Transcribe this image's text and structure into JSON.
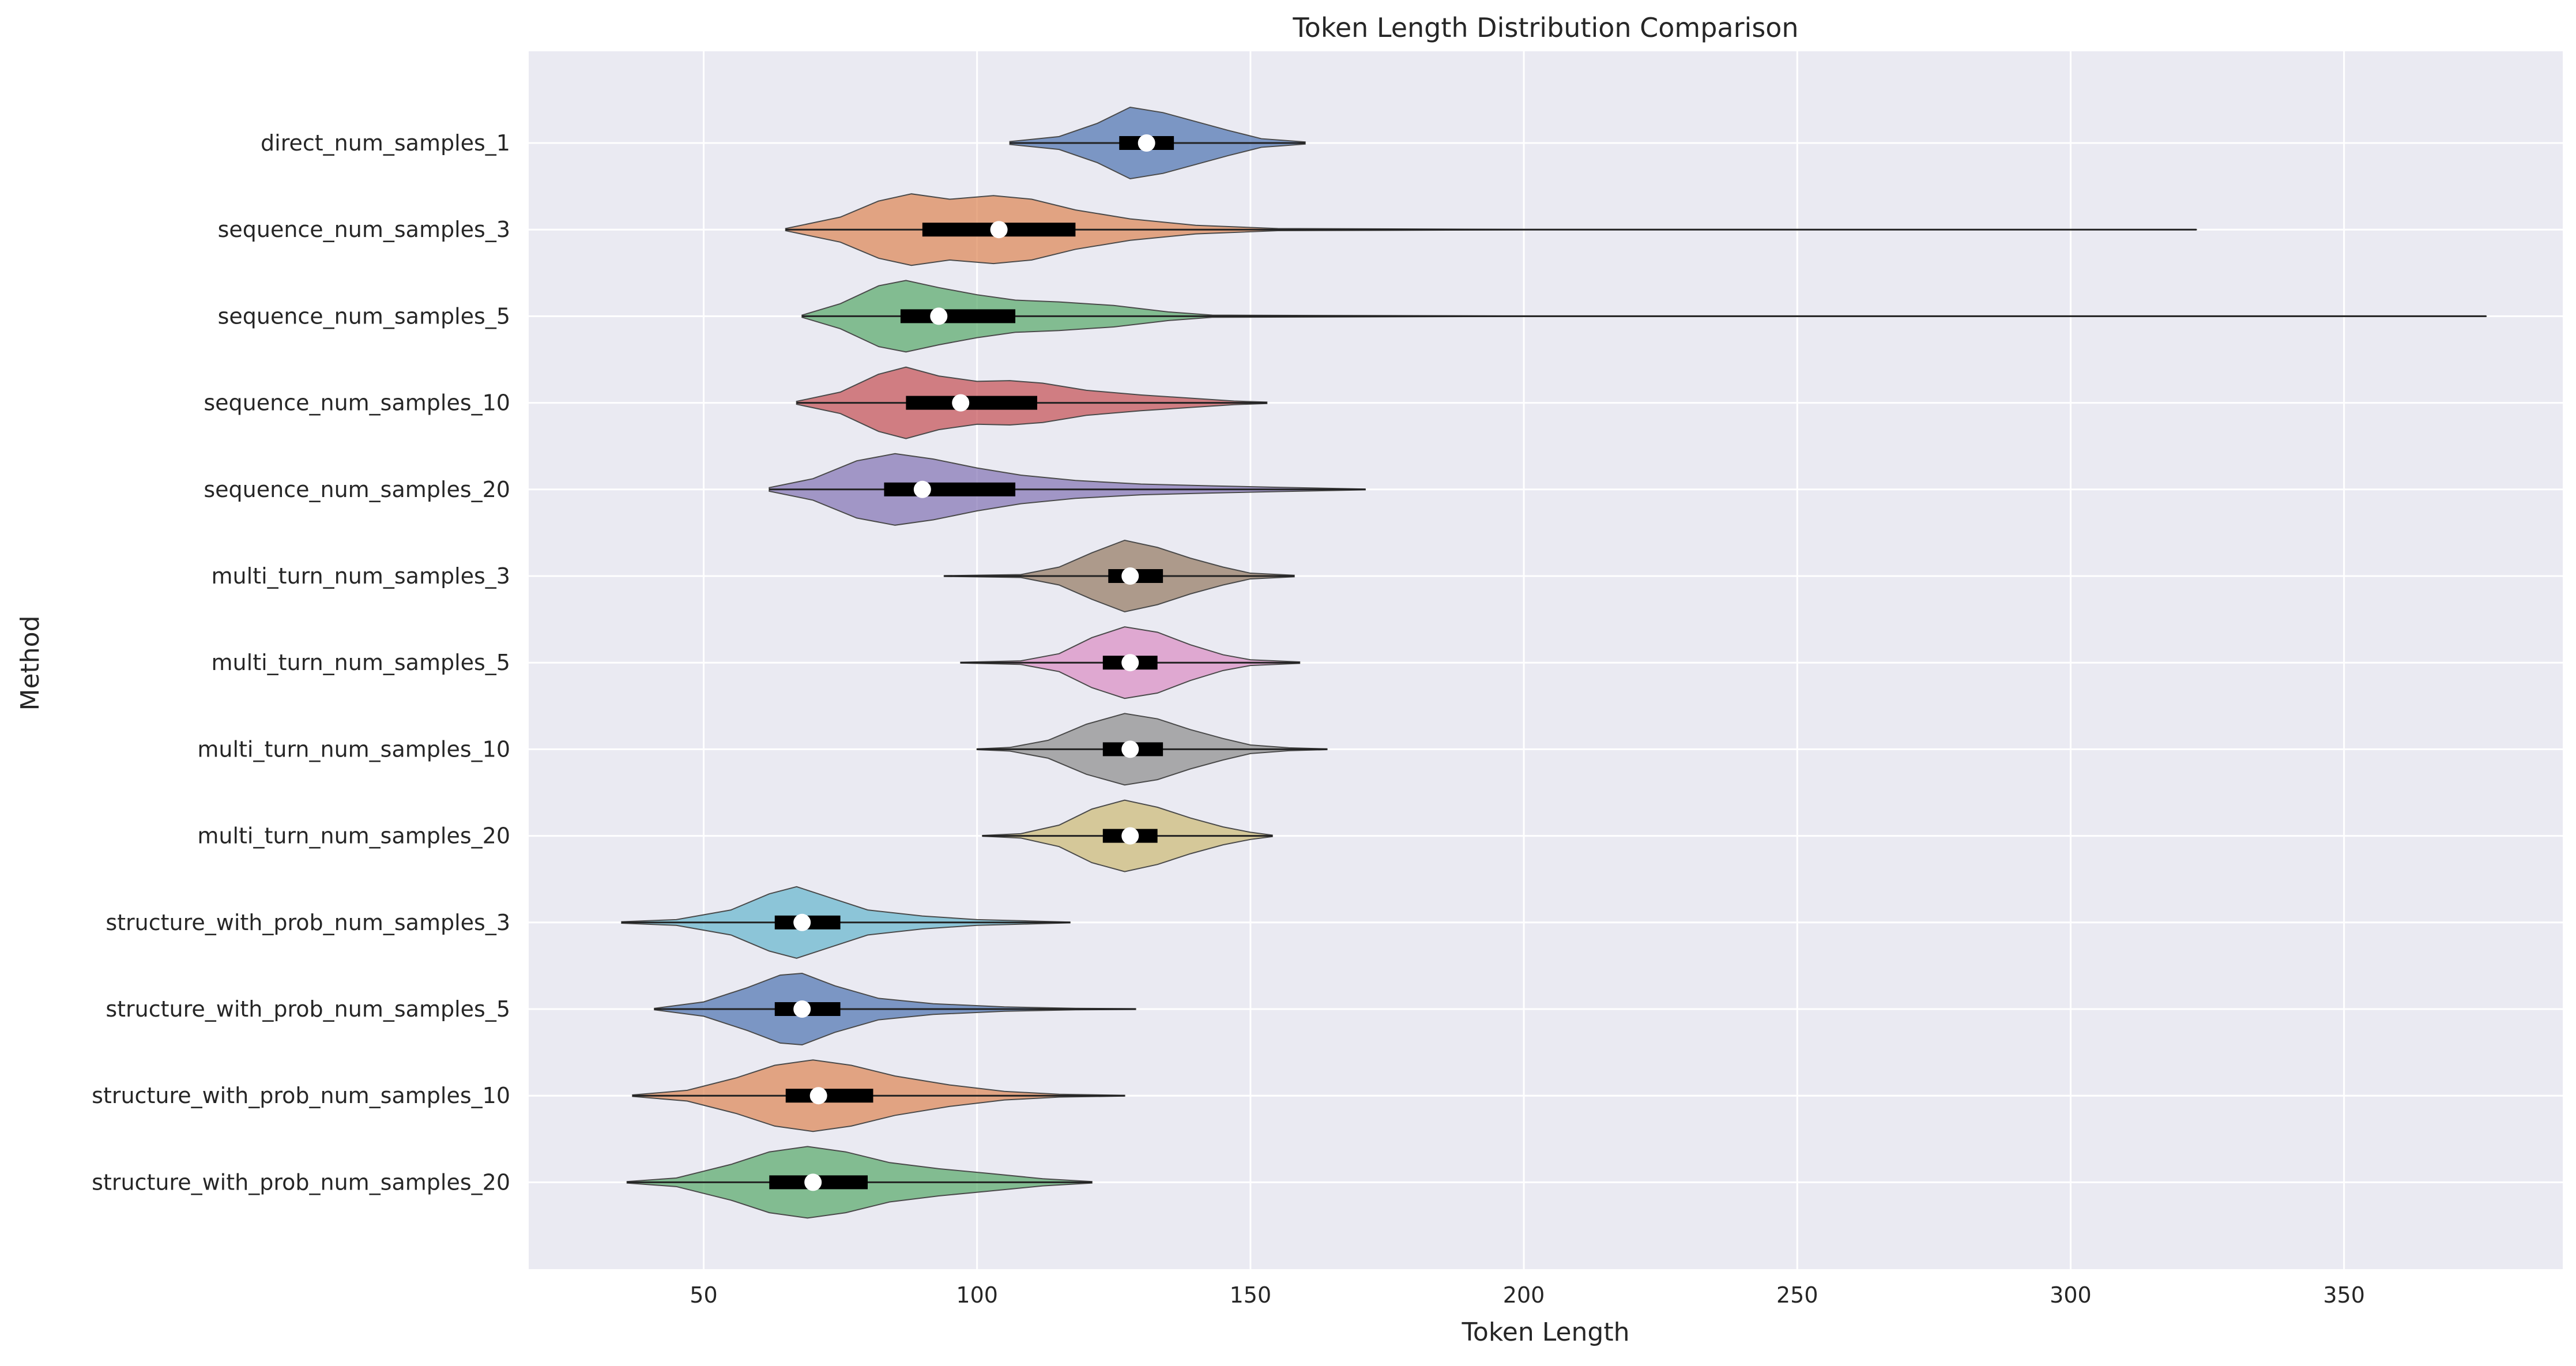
{
  "chart_data": {
    "type": "violin",
    "orientation": "horizontal",
    "title": "Token Length Distribution Comparison",
    "xlabel": "Token Length",
    "ylabel": "Method",
    "xlim": [
      18,
      390
    ],
    "xticks": [
      50,
      100,
      150,
      200,
      250,
      300,
      350
    ],
    "grid": true,
    "legend": "none",
    "series": [
      {
        "name": "direct_num_samples_1",
        "color": "#4c72b0",
        "min": 106,
        "q1": 126,
        "median": 131,
        "q3": 136,
        "max": 160,
        "density": [
          [
            106,
            0.04
          ],
          [
            115,
            0.18
          ],
          [
            122,
            0.55
          ],
          [
            128,
            1.0
          ],
          [
            134,
            0.85
          ],
          [
            140,
            0.6
          ],
          [
            146,
            0.35
          ],
          [
            152,
            0.12
          ],
          [
            160,
            0.03
          ]
        ]
      },
      {
        "name": "sequence_num_samples_3",
        "color": "#dd8452",
        "min": 65,
        "q1": 90,
        "median": 104,
        "q3": 118,
        "max": 323,
        "density": [
          [
            65,
            0.03
          ],
          [
            75,
            0.35
          ],
          [
            82,
            0.8
          ],
          [
            88,
            1.0
          ],
          [
            95,
            0.85
          ],
          [
            103,
            0.95
          ],
          [
            110,
            0.85
          ],
          [
            118,
            0.55
          ],
          [
            128,
            0.3
          ],
          [
            140,
            0.12
          ],
          [
            155,
            0.03
          ],
          [
            200,
            0.005
          ],
          [
            323,
            0.003
          ]
        ]
      },
      {
        "name": "sequence_num_samples_5",
        "color": "#55a868",
        "min": 68,
        "q1": 86,
        "median": 93,
        "q3": 107,
        "max": 376,
        "density": [
          [
            68,
            0.03
          ],
          [
            75,
            0.35
          ],
          [
            82,
            0.85
          ],
          [
            87,
            1.0
          ],
          [
            93,
            0.8
          ],
          [
            100,
            0.6
          ],
          [
            107,
            0.45
          ],
          [
            115,
            0.4
          ],
          [
            125,
            0.3
          ],
          [
            135,
            0.12
          ],
          [
            143,
            0.03
          ],
          [
            200,
            0.005
          ],
          [
            376,
            0.003
          ]
        ]
      },
      {
        "name": "sequence_num_samples_10",
        "color": "#c44e52",
        "min": 67,
        "q1": 87,
        "median": 97,
        "q3": 111,
        "max": 153,
        "density": [
          [
            67,
            0.04
          ],
          [
            75,
            0.3
          ],
          [
            82,
            0.8
          ],
          [
            87,
            1.0
          ],
          [
            93,
            0.75
          ],
          [
            100,
            0.6
          ],
          [
            106,
            0.62
          ],
          [
            112,
            0.55
          ],
          [
            120,
            0.35
          ],
          [
            130,
            0.22
          ],
          [
            140,
            0.12
          ],
          [
            147,
            0.05
          ],
          [
            153,
            0.02
          ]
        ]
      },
      {
        "name": "sequence_num_samples_20",
        "color": "#8172b3",
        "min": 62,
        "q1": 83,
        "median": 90,
        "q3": 107,
        "max": 171,
        "density": [
          [
            62,
            0.05
          ],
          [
            70,
            0.3
          ],
          [
            78,
            0.8
          ],
          [
            85,
            1.0
          ],
          [
            92,
            0.85
          ],
          [
            100,
            0.6
          ],
          [
            108,
            0.4
          ],
          [
            118,
            0.25
          ],
          [
            130,
            0.15
          ],
          [
            143,
            0.1
          ],
          [
            155,
            0.06
          ],
          [
            165,
            0.03
          ],
          [
            171,
            0.01
          ]
        ]
      },
      {
        "name": "multi_turn_num_samples_3",
        "color": "#937860",
        "min": 94,
        "q1": 124,
        "median": 128,
        "q3": 134,
        "max": 158,
        "density": [
          [
            94,
            0.01
          ],
          [
            108,
            0.04
          ],
          [
            115,
            0.25
          ],
          [
            121,
            0.65
          ],
          [
            127,
            1.0
          ],
          [
            133,
            0.8
          ],
          [
            139,
            0.5
          ],
          [
            145,
            0.25
          ],
          [
            150,
            0.08
          ],
          [
            158,
            0.02
          ]
        ]
      },
      {
        "name": "multi_turn_num_samples_5",
        "color": "#da8bc3",
        "min": 97,
        "q1": 123,
        "median": 128,
        "q3": 133,
        "max": 159,
        "density": [
          [
            97,
            0.01
          ],
          [
            108,
            0.05
          ],
          [
            115,
            0.25
          ],
          [
            121,
            0.7
          ],
          [
            127,
            1.0
          ],
          [
            133,
            0.85
          ],
          [
            139,
            0.5
          ],
          [
            145,
            0.22
          ],
          [
            150,
            0.08
          ],
          [
            159,
            0.02
          ]
        ]
      },
      {
        "name": "multi_turn_num_samples_10",
        "color": "#8c8c8c",
        "min": 100,
        "q1": 123,
        "median": 128,
        "q3": 134,
        "max": 164,
        "density": [
          [
            100,
            0.01
          ],
          [
            106,
            0.05
          ],
          [
            113,
            0.25
          ],
          [
            120,
            0.7
          ],
          [
            127,
            1.0
          ],
          [
            133,
            0.85
          ],
          [
            139,
            0.55
          ],
          [
            145,
            0.3
          ],
          [
            150,
            0.12
          ],
          [
            157,
            0.04
          ],
          [
            164,
            0.01
          ]
        ]
      },
      {
        "name": "multi_turn_num_samples_20",
        "color": "#ccb974",
        "min": 101,
        "q1": 123,
        "median": 128,
        "q3": 133,
        "max": 154,
        "density": [
          [
            101,
            0.01
          ],
          [
            108,
            0.06
          ],
          [
            115,
            0.3
          ],
          [
            121,
            0.75
          ],
          [
            127,
            1.0
          ],
          [
            133,
            0.8
          ],
          [
            139,
            0.5
          ],
          [
            145,
            0.25
          ],
          [
            150,
            0.1
          ],
          [
            154,
            0.02
          ]
        ]
      },
      {
        "name": "structure_with_prob_num_samples_3",
        "color": "#64b5cd",
        "min": 35,
        "q1": 63,
        "median": 68,
        "q3": 75,
        "max": 117,
        "density": [
          [
            35,
            0.02
          ],
          [
            45,
            0.08
          ],
          [
            55,
            0.35
          ],
          [
            62,
            0.8
          ],
          [
            67,
            1.0
          ],
          [
            73,
            0.7
          ],
          [
            80,
            0.35
          ],
          [
            90,
            0.18
          ],
          [
            100,
            0.08
          ],
          [
            110,
            0.04
          ],
          [
            117,
            0.01
          ]
        ]
      },
      {
        "name": "structure_with_prob_num_samples_5",
        "color": "#4c72b0",
        "min": 41,
        "q1": 63,
        "median": 68,
        "q3": 75,
        "max": 129,
        "density": [
          [
            41,
            0.02
          ],
          [
            50,
            0.2
          ],
          [
            58,
            0.6
          ],
          [
            64,
            0.95
          ],
          [
            68,
            1.0
          ],
          [
            74,
            0.65
          ],
          [
            82,
            0.3
          ],
          [
            92,
            0.15
          ],
          [
            105,
            0.06
          ],
          [
            118,
            0.02
          ],
          [
            129,
            0.01
          ]
        ]
      },
      {
        "name": "structure_with_prob_num_samples_10",
        "color": "#dd8452",
        "min": 37,
        "q1": 65,
        "median": 71,
        "q3": 81,
        "max": 127,
        "density": [
          [
            37,
            0.02
          ],
          [
            47,
            0.15
          ],
          [
            56,
            0.5
          ],
          [
            63,
            0.85
          ],
          [
            70,
            1.0
          ],
          [
            77,
            0.85
          ],
          [
            85,
            0.55
          ],
          [
            95,
            0.3
          ],
          [
            105,
            0.12
          ],
          [
            115,
            0.04
          ],
          [
            127,
            0.01
          ]
        ]
      },
      {
        "name": "structure_with_prob_num_samples_20",
        "color": "#55a868",
        "min": 36,
        "q1": 62,
        "median": 70,
        "q3": 80,
        "max": 121,
        "density": [
          [
            36,
            0.02
          ],
          [
            45,
            0.12
          ],
          [
            55,
            0.5
          ],
          [
            62,
            0.85
          ],
          [
            69,
            1.0
          ],
          [
            76,
            0.85
          ],
          [
            84,
            0.55
          ],
          [
            93,
            0.38
          ],
          [
            102,
            0.25
          ],
          [
            112,
            0.1
          ],
          [
            121,
            0.02
          ]
        ]
      }
    ]
  }
}
